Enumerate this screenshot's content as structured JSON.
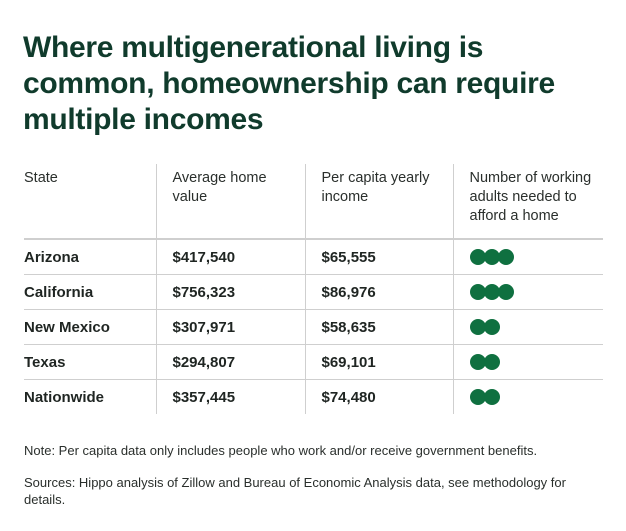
{
  "title": "Where multigenerational living is common, homeownership can require multiple incomes",
  "table": {
    "headers": [
      "State",
      "Average home value",
      "Per capita yearly income",
      "Number of working adults needed to afford a home"
    ],
    "rows": [
      {
        "state": "Arizona",
        "home_value": "$417,540",
        "income": "$65,555",
        "adults": 3
      },
      {
        "state": "California",
        "home_value": "$756,323",
        "income": "$86,976",
        "adults": 3
      },
      {
        "state": "New Mexico",
        "home_value": "$307,971",
        "income": "$58,635",
        "adults": 2
      },
      {
        "state": "Texas",
        "home_value": "$294,807",
        "income": "$69,101",
        "adults": 2
      },
      {
        "state": "Nationwide",
        "home_value": "$357,445",
        "income": "$74,480",
        "adults": 2
      }
    ]
  },
  "note": "Note: Per capita data only includes people who work and/or receive government benefits.",
  "sources": "Sources: Hippo analysis of Zillow and Bureau of Economic Analysis data, see methodology for details.",
  "colors": {
    "title": "#103b2c",
    "dot": "#0f7040",
    "rule": "#cfcfcf"
  },
  "chart_data": {
    "type": "table",
    "title": "Where multigenerational living is common, homeownership can require multiple incomes",
    "columns": [
      "State",
      "Average home value",
      "Per capita yearly income",
      "Number of working adults needed to afford a home"
    ],
    "rows": [
      [
        "Arizona",
        417540,
        65555,
        3
      ],
      [
        "California",
        756323,
        86976,
        3
      ],
      [
        "New Mexico",
        307971,
        58635,
        2
      ],
      [
        "Texas",
        294807,
        69101,
        2
      ],
      [
        "Nationwide",
        357445,
        74480,
        2
      ]
    ],
    "annotations": [
      "Note: Per capita data only includes people who work and/or receive government benefits.",
      "Sources: Hippo analysis of Zillow and Bureau of Economic Analysis data, see methodology for details."
    ]
  }
}
